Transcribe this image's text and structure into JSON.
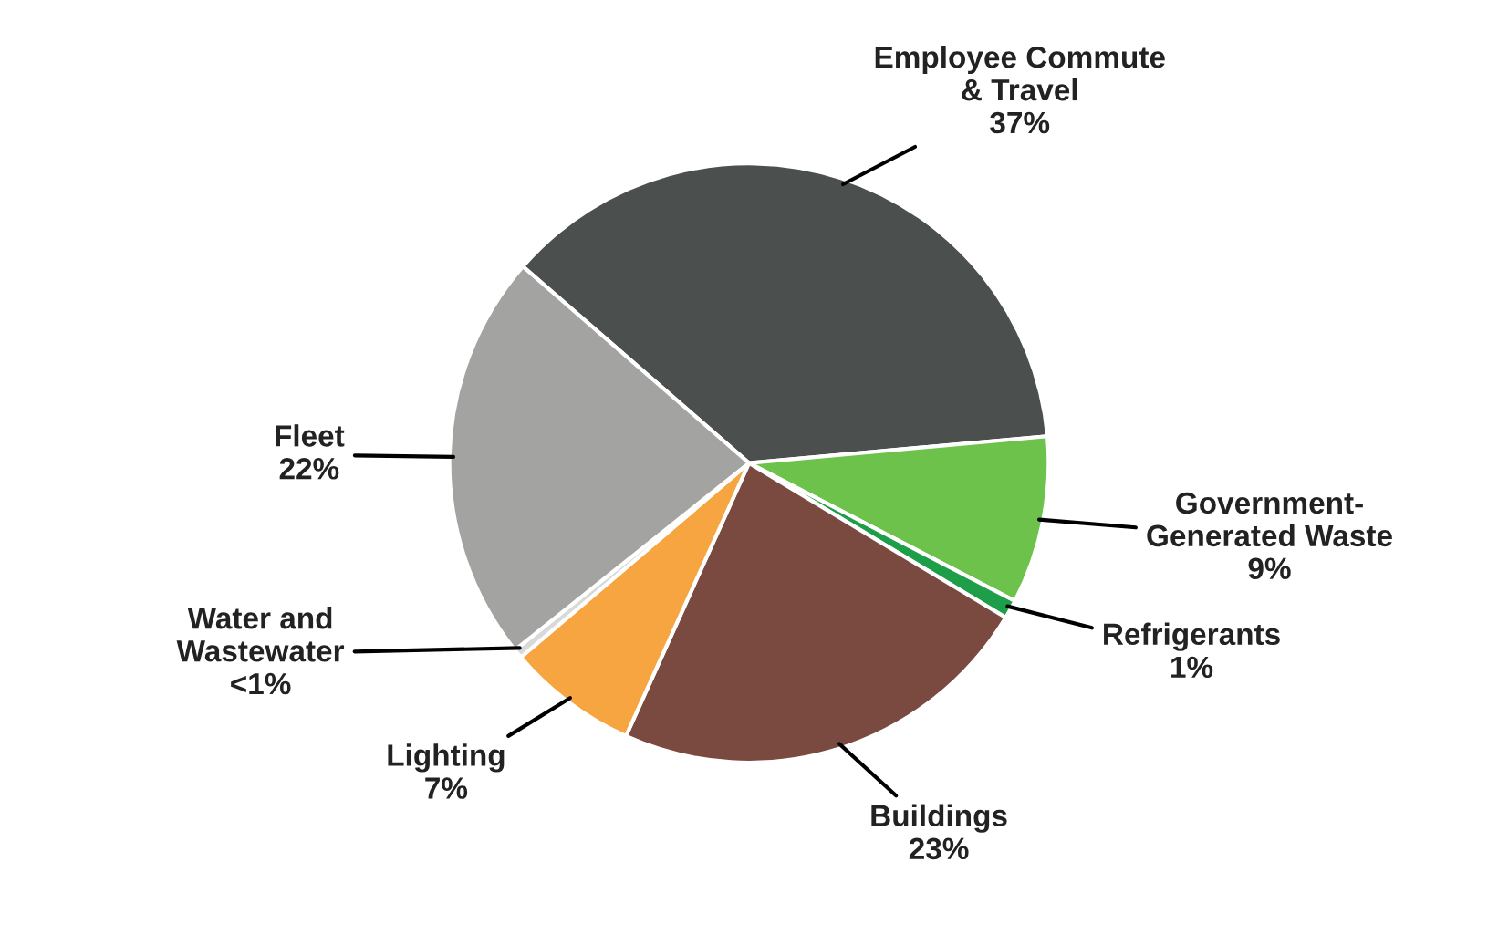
{
  "chart_data": {
    "type": "pie",
    "categories": [
      "Employee Commute\n& Travel",
      "Government-\nGenerated Waste",
      "Refrigerants",
      "Buildings",
      "Lighting",
      "Water and\nWastewater",
      "Fleet"
    ],
    "values": [
      37,
      9,
      1,
      23,
      7,
      0.5,
      22
    ],
    "value_labels": [
      "37%",
      "9%",
      "1%",
      "23%",
      "7%",
      "<1%",
      "22%"
    ],
    "colors": [
      "#4b504e",
      "#6cc24a",
      "#1f9e4a",
      "#7a4a40",
      "#f7a541",
      "#d9d9d9",
      "#a3a3a1"
    ],
    "legend": false
  }
}
